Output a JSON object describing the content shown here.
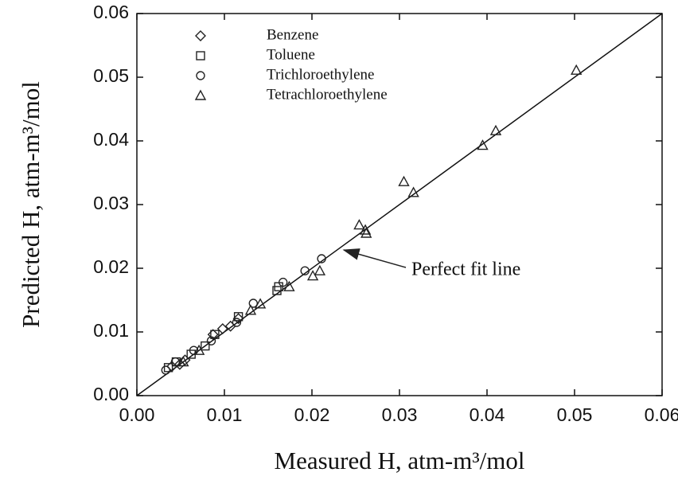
{
  "chart_data": {
    "type": "scatter",
    "x_label": "Measured H, atm-m³/mol",
    "y_label": "Predicted H, atm-m³/mol",
    "annotation": "Perfect fit line",
    "xlim": [
      0,
      0.06
    ],
    "ylim": [
      0,
      0.06
    ],
    "xticks": [
      {
        "value": 0,
        "label": "0.00"
      },
      0.01,
      0.02,
      0.03,
      0.04,
      0.05,
      0.06
    ],
    "yticks": [
      {
        "value": 0,
        "label": "0.00"
      },
      0.01,
      0.02,
      0.03,
      0.04,
      0.05,
      0.06
    ],
    "series": [
      {
        "name": "Benzene",
        "marker": "diamond",
        "color": "#222222",
        "x": [
          0.0087,
          0.0098,
          0.0116,
          0.0107,
          0.0055,
          0.0049,
          0.004
        ],
        "values": [
          0.0096,
          0.0105,
          0.0121,
          0.0109,
          0.0056,
          0.0049,
          0.0046
        ]
      },
      {
        "name": "Toluene",
        "marker": "square",
        "color": "#222222",
        "x": [
          0.0162,
          0.016,
          0.0116,
          0.0089,
          0.0078,
          0.0062,
          0.0045,
          0.0036
        ],
        "values": [
          0.0171,
          0.0165,
          0.0124,
          0.0096,
          0.0078,
          0.0065,
          0.0053,
          0.0044
        ]
      },
      {
        "name": "Trichloroethylene",
        "marker": "circle",
        "color": "#222222",
        "x": [
          0.0192,
          0.0211,
          0.0167,
          0.0133,
          0.0114,
          0.0085,
          0.0065,
          0.0044,
          0.0033
        ],
        "values": [
          0.0196,
          0.0215,
          0.0178,
          0.0145,
          0.0115,
          0.0086,
          0.0071,
          0.0053,
          0.004
        ]
      },
      {
        "name": "Tetrachloroethylene",
        "marker": "triangle",
        "color": "#222222",
        "x": [
          0.0502,
          0.041,
          0.0395,
          0.0305,
          0.0316,
          0.0254,
          0.0261,
          0.0262,
          0.0209,
          0.0201,
          0.0174,
          0.0141,
          0.013,
          0.0071,
          0.0053
        ],
        "values": [
          0.0511,
          0.0416,
          0.0393,
          0.0336,
          0.0319,
          0.0268,
          0.026,
          0.0255,
          0.0196,
          0.0188,
          0.0171,
          0.0144,
          0.0134,
          0.0071,
          0.0053
        ]
      }
    ]
  }
}
